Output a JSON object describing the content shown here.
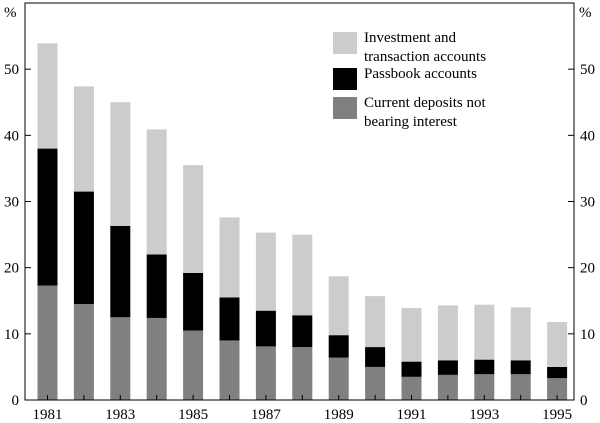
{
  "chart_data": {
    "type": "bar",
    "stacked": true,
    "categories": [
      "1981",
      "1982",
      "1983",
      "1984",
      "1985",
      "1986",
      "1987",
      "1988",
      "1989",
      "1990",
      "1991",
      "1992",
      "1993",
      "1994",
      "1995"
    ],
    "x_tick_labels": [
      "1981",
      "1983",
      "1985",
      "1987",
      "1989",
      "1991",
      "1993",
      "1995"
    ],
    "y_unit_left": "%",
    "y_unit_right": "%",
    "ylim": [
      0,
      60
    ],
    "y_ticks": [
      0,
      10,
      20,
      30,
      40,
      50
    ],
    "grid": false,
    "legend_position": "top-right",
    "series": [
      {
        "key": "current",
        "name": "Current deposits not bearing interest",
        "name_lines": [
          "Current deposits not",
          "bearing interest"
        ],
        "color": "#808080",
        "values": [
          17.3,
          14.5,
          12.5,
          12.4,
          10.5,
          9.0,
          8.1,
          8.0,
          6.4,
          5.0,
          3.5,
          3.8,
          3.9,
          3.9,
          3.3
        ]
      },
      {
        "key": "passbook",
        "name": "Passbook accounts",
        "name_lines": [
          "Passbook accounts"
        ],
        "color": "#000000",
        "values": [
          20.7,
          17.0,
          13.8,
          9.6,
          8.7,
          6.5,
          5.4,
          4.8,
          3.4,
          3.0,
          2.3,
          2.2,
          2.2,
          2.1,
          1.7
        ]
      },
      {
        "key": "investment",
        "name": "Investment and transaction accounts",
        "name_lines": [
          "Investment and",
          "transaction accounts"
        ],
        "color": "#cccccc",
        "values": [
          15.9,
          15.9,
          18.7,
          18.9,
          16.3,
          12.1,
          11.8,
          12.2,
          8.9,
          7.7,
          8.1,
          8.3,
          8.3,
          8.0,
          6.8
        ]
      }
    ],
    "legend_order": [
      "investment",
      "passbook",
      "current"
    ]
  }
}
